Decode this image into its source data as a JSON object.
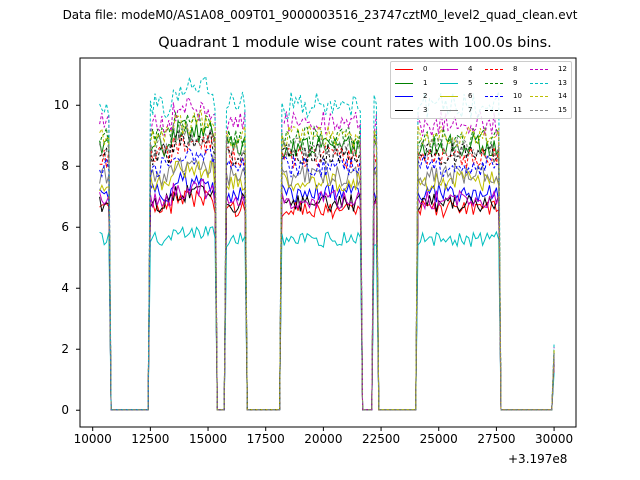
{
  "figure": {
    "suptitle": "Data file: modeM0/AS1A08_009T01_9000003516_23747cztM0_level2_quad_clean.evt",
    "title": "Quadrant 1 module wise count rates with 100.0s bins.",
    "offset_text": "+3.197e8"
  },
  "chart_data": {
    "type": "line",
    "title": "Quadrant 1 module wise count rates with 100.0s bins.",
    "xlabel": "",
    "ylabel": "",
    "x_offset": 319700000,
    "xlim": [
      9450,
      30950
    ],
    "ylim": [
      -0.55,
      11.55
    ],
    "xticks": [
      10000,
      12500,
      15000,
      17500,
      20000,
      22500,
      25000,
      27500,
      30000
    ],
    "xtick_labels": [
      "10000",
      "12500",
      "15000",
      "17500",
      "20000",
      "22500",
      "25000",
      "27500",
      "30000"
    ],
    "yticks": [
      0,
      2,
      4,
      6,
      8,
      10
    ],
    "ytick_labels": [
      "0",
      "2",
      "4",
      "6",
      "8",
      "10"
    ],
    "grid": false,
    "legend_position": "top-right",
    "bin_width": 100,
    "plateau_segments": [
      {
        "x_start": 10300,
        "x_end": 10700
      },
      {
        "x_start": 12500,
        "x_end": 15300
      },
      {
        "x_start": 15800,
        "x_end": 16600
      },
      {
        "x_start": 18200,
        "x_end": 21600
      },
      {
        "x_start": 22200,
        "x_end": 22300
      },
      {
        "x_start": 24100,
        "x_end": 27600
      }
    ],
    "gap_level": 0.02,
    "end_point": {
      "x": 30000,
      "level_fraction": 0.22
    },
    "series": [
      {
        "name": "0",
        "color": "#ff0000",
        "dash": false,
        "level": 6.6
      },
      {
        "name": "1",
        "color": "#008000",
        "dash": false,
        "level": 8.7
      },
      {
        "name": "2",
        "color": "#0000ff",
        "dash": false,
        "level": 7.1
      },
      {
        "name": "3",
        "color": "#000000",
        "dash": false,
        "level": 6.8
      },
      {
        "name": "4",
        "color": "#bf00bf",
        "dash": false,
        "level": 6.9
      },
      {
        "name": "5",
        "color": "#00bfbf",
        "dash": false,
        "level": 5.6
      },
      {
        "name": "6",
        "color": "#bfbf00",
        "dash": false,
        "level": 7.5
      },
      {
        "name": "7",
        "color": "#808080",
        "dash": false,
        "level": 7.7
      },
      {
        "name": "8",
        "color": "#ff0000",
        "dash": true,
        "level": 8.3
      },
      {
        "name": "9",
        "color": "#008000",
        "dash": true,
        "level": 8.9
      },
      {
        "name": "10",
        "color": "#0000ff",
        "dash": true,
        "level": 8.0
      },
      {
        "name": "11",
        "color": "#000000",
        "dash": true,
        "level": 8.4
      },
      {
        "name": "12",
        "color": "#bf00bf",
        "dash": true,
        "level": 9.4
      },
      {
        "name": "13",
        "color": "#00bfbf",
        "dash": true,
        "level": 10.0
      },
      {
        "name": "14",
        "color": "#bfbf00",
        "dash": true,
        "level": 9.0
      },
      {
        "name": "15",
        "color": "#808080",
        "dash": true,
        "level": 8.6
      }
    ]
  }
}
